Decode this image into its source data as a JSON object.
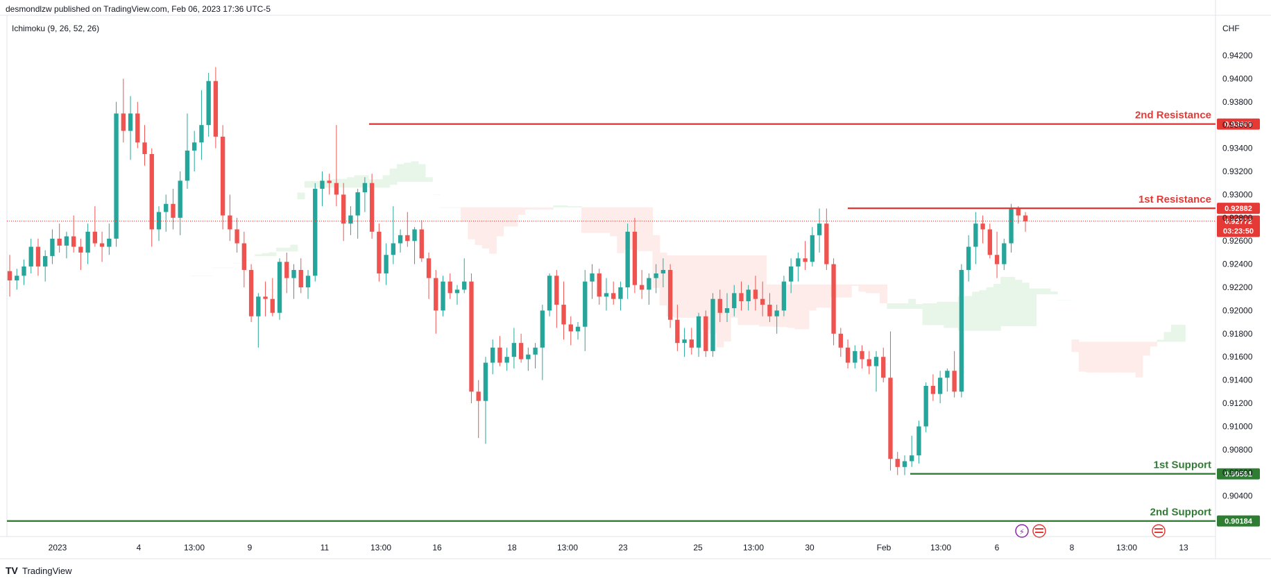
{
  "header": {
    "publish_info": "desmondlzw published on TradingView.com, Feb 06, 2023 17:36 UTC-5",
    "indicator": "Ichimoku (9, 26, 52, 26)",
    "currency": "CHF",
    "brand": "TradingView"
  },
  "colors": {
    "up": "#26a69a",
    "down": "#ef5350",
    "resistance": "#e53935",
    "support": "#2e7d32",
    "cloud_bull": "#e8f5e9",
    "cloud_bear": "#fdecea",
    "grid": "#f0f3fa",
    "axis_text": "#131722"
  },
  "chart_data": {
    "type": "candlestick",
    "ylim": [
      0.902,
      0.944
    ],
    "y_ticks": [
      "0.94200",
      "0.94000",
      "0.93800",
      "0.93600",
      "0.93400",
      "0.93200",
      "0.93000",
      "0.92800",
      "0.92600",
      "0.92400",
      "0.92200",
      "0.92000",
      "0.91800",
      "0.91600",
      "0.91400",
      "0.91200",
      "0.91000",
      "0.90800",
      "0.90600",
      "0.90400"
    ],
    "x_ticks": [
      "2023",
      "4",
      "13:00",
      "9",
      "11",
      "13:00",
      "16",
      "18",
      "13:00",
      "23",
      "25",
      "13:00",
      "30",
      "Feb",
      "13:00",
      "6",
      "8",
      "13:00",
      "13"
    ],
    "levels": [
      {
        "name": "2nd Resistance",
        "value": 0.93609,
        "label": "0.93609",
        "kind": "resistance"
      },
      {
        "name": "1st Resistance",
        "value": 0.92882,
        "label": "0.92882",
        "kind": "resistance"
      },
      {
        "name": "1st Support",
        "value": 0.90591,
        "label": "0.90591",
        "kind": "support"
      },
      {
        "name": "2nd Support",
        "value": 0.90184,
        "label": "0.90184",
        "kind": "support"
      }
    ],
    "current_price": {
      "value": 0.92772,
      "label": "0.92772",
      "countdown": "03:23:50"
    },
    "candles": [
      [
        0.9234,
        0.9248,
        0.9212,
        0.9226
      ],
      [
        0.9226,
        0.9236,
        0.9218,
        0.923
      ],
      [
        0.923,
        0.9244,
        0.9222,
        0.9238
      ],
      [
        0.9238,
        0.9262,
        0.9232,
        0.9255
      ],
      [
        0.9255,
        0.9262,
        0.923,
        0.9238
      ],
      [
        0.9238,
        0.9252,
        0.9225,
        0.9247
      ],
      [
        0.9247,
        0.927,
        0.924,
        0.9262
      ],
      [
        0.9262,
        0.9275,
        0.925,
        0.9256
      ],
      [
        0.9256,
        0.9268,
        0.9245,
        0.9264
      ],
      [
        0.9264,
        0.9282,
        0.925,
        0.9255
      ],
      [
        0.9255,
        0.9262,
        0.9235,
        0.925
      ],
      [
        0.925,
        0.9275,
        0.924,
        0.9268
      ],
      [
        0.9268,
        0.929,
        0.9255,
        0.9258
      ],
      [
        0.9258,
        0.9268,
        0.9242,
        0.9255
      ],
      [
        0.9255,
        0.9275,
        0.9248,
        0.9262
      ],
      [
        0.9262,
        0.938,
        0.9255,
        0.937
      ],
      [
        0.937,
        0.94,
        0.9345,
        0.9355
      ],
      [
        0.9355,
        0.9385,
        0.933,
        0.937
      ],
      [
        0.937,
        0.938,
        0.934,
        0.9345
      ],
      [
        0.9345,
        0.936,
        0.9325,
        0.9335
      ],
      [
        0.9335,
        0.934,
        0.9255,
        0.927
      ],
      [
        0.927,
        0.929,
        0.926,
        0.9285
      ],
      [
        0.9285,
        0.93,
        0.9268,
        0.9292
      ],
      [
        0.9292,
        0.9305,
        0.927,
        0.928
      ],
      [
        0.928,
        0.932,
        0.9265,
        0.9312
      ],
      [
        0.9312,
        0.937,
        0.9305,
        0.9338
      ],
      [
        0.9338,
        0.9355,
        0.932,
        0.9345
      ],
      [
        0.9345,
        0.939,
        0.933,
        0.936
      ],
      [
        0.936,
        0.9405,
        0.935,
        0.9398
      ],
      [
        0.9398,
        0.941,
        0.934,
        0.935
      ],
      [
        0.935,
        0.936,
        0.927,
        0.9282
      ],
      [
        0.9282,
        0.93,
        0.926,
        0.927
      ],
      [
        0.927,
        0.928,
        0.925,
        0.9258
      ],
      [
        0.9258,
        0.9268,
        0.922,
        0.9235
      ],
      [
        0.9235,
        0.924,
        0.919,
        0.9195
      ],
      [
        0.9195,
        0.9215,
        0.9168,
        0.9212
      ],
      [
        0.9212,
        0.9225,
        0.9195,
        0.921
      ],
      [
        0.921,
        0.9228,
        0.9195,
        0.9198
      ],
      [
        0.9198,
        0.9245,
        0.9192,
        0.9242
      ],
      [
        0.9242,
        0.925,
        0.9215,
        0.9228
      ],
      [
        0.9228,
        0.924,
        0.921,
        0.9235
      ],
      [
        0.9235,
        0.9245,
        0.9215,
        0.922
      ],
      [
        0.922,
        0.9235,
        0.921,
        0.923
      ],
      [
        0.923,
        0.931,
        0.9225,
        0.9305
      ],
      [
        0.9305,
        0.932,
        0.929,
        0.9312
      ],
      [
        0.9312,
        0.9318,
        0.93,
        0.931
      ],
      [
        0.931,
        0.936,
        0.929,
        0.93
      ],
      [
        0.93,
        0.931,
        0.926,
        0.9275
      ],
      [
        0.9275,
        0.929,
        0.9265,
        0.9282
      ],
      [
        0.9282,
        0.9305,
        0.9262,
        0.9302
      ],
      [
        0.9302,
        0.9315,
        0.9285,
        0.931
      ],
      [
        0.931,
        0.9318,
        0.9262,
        0.9268
      ],
      [
        0.9268,
        0.9275,
        0.9225,
        0.9232
      ],
      [
        0.9232,
        0.9258,
        0.9222,
        0.9248
      ],
      [
        0.9248,
        0.929,
        0.924,
        0.9258
      ],
      [
        0.9258,
        0.927,
        0.925,
        0.9265
      ],
      [
        0.9265,
        0.9285,
        0.9255,
        0.926
      ],
      [
        0.926,
        0.9272,
        0.924,
        0.927
      ],
      [
        0.927,
        0.9278,
        0.9242,
        0.9245
      ],
      [
        0.9245,
        0.925,
        0.921,
        0.9228
      ],
      [
        0.9228,
        0.9235,
        0.918,
        0.92
      ],
      [
        0.92,
        0.923,
        0.9195,
        0.9225
      ],
      [
        0.9225,
        0.9232,
        0.921,
        0.9215
      ],
      [
        0.9215,
        0.9222,
        0.9205,
        0.9218
      ],
      [
        0.9218,
        0.9245,
        0.9215,
        0.9225
      ],
      [
        0.9225,
        0.9232,
        0.912,
        0.913
      ],
      [
        0.913,
        0.914,
        0.909,
        0.9122
      ],
      [
        0.9122,
        0.916,
        0.9085,
        0.9155
      ],
      [
        0.9155,
        0.9175,
        0.9145,
        0.9168
      ],
      [
        0.9168,
        0.9178,
        0.9152,
        0.9155
      ],
      [
        0.9155,
        0.9168,
        0.9148,
        0.916
      ],
      [
        0.916,
        0.9185,
        0.915,
        0.9172
      ],
      [
        0.9172,
        0.918,
        0.9155,
        0.9158
      ],
      [
        0.9158,
        0.9168,
        0.9148,
        0.9162
      ],
      [
        0.9162,
        0.9172,
        0.915,
        0.9168
      ],
      [
        0.9168,
        0.9205,
        0.914,
        0.92
      ],
      [
        0.92,
        0.9232,
        0.9195,
        0.923
      ],
      [
        0.923,
        0.9235,
        0.9185,
        0.9205
      ],
      [
        0.9205,
        0.9225,
        0.9175,
        0.9188
      ],
      [
        0.9188,
        0.9195,
        0.917,
        0.9182
      ],
      [
        0.9182,
        0.919,
        0.9175,
        0.9186
      ],
      [
        0.9186,
        0.9235,
        0.9165,
        0.9225
      ],
      [
        0.9225,
        0.924,
        0.921,
        0.9232
      ],
      [
        0.9232,
        0.9236,
        0.9205,
        0.9212
      ],
      [
        0.9212,
        0.9228,
        0.92,
        0.9215
      ],
      [
        0.9215,
        0.9225,
        0.9205,
        0.921
      ],
      [
        0.921,
        0.9225,
        0.92,
        0.922
      ],
      [
        0.922,
        0.9275,
        0.921,
        0.9268
      ],
      [
        0.9268,
        0.928,
        0.9215,
        0.9222
      ],
      [
        0.9222,
        0.9235,
        0.921,
        0.9218
      ],
      [
        0.9218,
        0.9232,
        0.9205,
        0.9228
      ],
      [
        0.9228,
        0.924,
        0.9215,
        0.9232
      ],
      [
        0.9232,
        0.9245,
        0.922,
        0.9235
      ],
      [
        0.9235,
        0.924,
        0.9185,
        0.9192
      ],
      [
        0.9192,
        0.9205,
        0.9165,
        0.9172
      ],
      [
        0.9172,
        0.9185,
        0.916,
        0.9175
      ],
      [
        0.9175,
        0.9185,
        0.9162,
        0.9168
      ],
      [
        0.9168,
        0.9198,
        0.916,
        0.9195
      ],
      [
        0.9195,
        0.92,
        0.916,
        0.9165
      ],
      [
        0.9165,
        0.9215,
        0.916,
        0.921
      ],
      [
        0.921,
        0.9218,
        0.919,
        0.9198
      ],
      [
        0.9198,
        0.9215,
        0.919,
        0.9202
      ],
      [
        0.9202,
        0.9222,
        0.9195,
        0.9215
      ],
      [
        0.9215,
        0.9225,
        0.92,
        0.9208
      ],
      [
        0.9208,
        0.9222,
        0.92,
        0.9218
      ],
      [
        0.9218,
        0.923,
        0.92,
        0.921
      ],
      [
        0.921,
        0.9225,
        0.9195,
        0.9205
      ],
      [
        0.9205,
        0.9215,
        0.919,
        0.9195
      ],
      [
        0.9195,
        0.9205,
        0.918,
        0.92
      ],
      [
        0.92,
        0.923,
        0.9195,
        0.9225
      ],
      [
        0.9225,
        0.9245,
        0.9215,
        0.9238
      ],
      [
        0.9238,
        0.925,
        0.9225,
        0.9245
      ],
      [
        0.9245,
        0.926,
        0.9235,
        0.9242
      ],
      [
        0.9242,
        0.9272,
        0.9238,
        0.9265
      ],
      [
        0.9265,
        0.9288,
        0.925,
        0.9275
      ],
      [
        0.9275,
        0.9288,
        0.9235,
        0.924
      ],
      [
        0.924,
        0.9245,
        0.917,
        0.918
      ],
      [
        0.918,
        0.9185,
        0.916,
        0.9168
      ],
      [
        0.9168,
        0.9175,
        0.915,
        0.9155
      ],
      [
        0.9155,
        0.917,
        0.915,
        0.9165
      ],
      [
        0.9165,
        0.917,
        0.915,
        0.9158
      ],
      [
        0.9158,
        0.9165,
        0.9145,
        0.9152
      ],
      [
        0.9152,
        0.9165,
        0.913,
        0.916
      ],
      [
        0.916,
        0.9168,
        0.9138,
        0.9142
      ],
      [
        0.9142,
        0.9182,
        0.9062,
        0.9072
      ],
      [
        0.9072,
        0.9078,
        0.9058,
        0.9065
      ],
      [
        0.9065,
        0.9075,
        0.9058,
        0.907
      ],
      [
        0.907,
        0.9092,
        0.9065,
        0.9075
      ],
      [
        0.9075,
        0.9105,
        0.9068,
        0.91
      ],
      [
        0.91,
        0.9138,
        0.9095,
        0.9135
      ],
      [
        0.9135,
        0.9145,
        0.9122,
        0.9128
      ],
      [
        0.9128,
        0.9148,
        0.912,
        0.9142
      ],
      [
        0.9142,
        0.915,
        0.913,
        0.9148
      ],
      [
        0.9148,
        0.9165,
        0.9125,
        0.913
      ],
      [
        0.913,
        0.924,
        0.9125,
        0.9235
      ],
      [
        0.9235,
        0.9265,
        0.9225,
        0.9255
      ],
      [
        0.9255,
        0.9285,
        0.924,
        0.9275
      ],
      [
        0.9275,
        0.9282,
        0.9258,
        0.927
      ],
      [
        0.927,
        0.9275,
        0.9245,
        0.9248
      ],
      [
        0.9248,
        0.9268,
        0.9228,
        0.924
      ],
      [
        0.924,
        0.9262,
        0.9235,
        0.9258
      ],
      [
        0.9258,
        0.9292,
        0.925,
        0.9288
      ],
      [
        0.9288,
        0.929,
        0.9275,
        0.9282
      ],
      [
        0.9282,
        0.9285,
        0.9268,
        0.9277
      ]
    ]
  }
}
